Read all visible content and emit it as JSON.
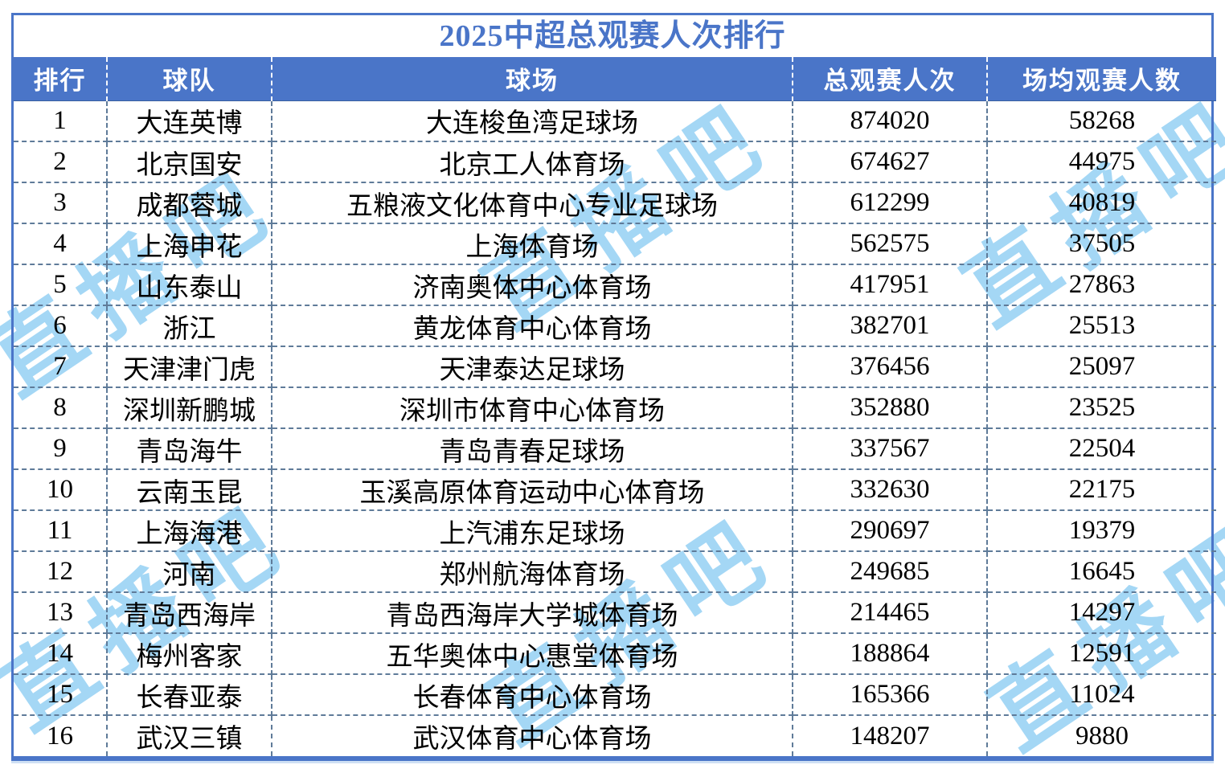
{
  "title": "2025中超总观赛人次排行",
  "watermark": {
    "text": "直播吧",
    "color": "#9bd3f4"
  },
  "colors": {
    "header_bg": "#4a75c8",
    "title_text": "#4a75c8",
    "outer_border": "#4a75c8",
    "divider": "#5f7b99"
  },
  "chart_data": {
    "type": "table",
    "title": "2025中超总观赛人次排行",
    "columns": [
      "排行",
      "球队",
      "球场",
      "总观赛人次",
      "场均观赛人数"
    ],
    "rows": [
      [
        1,
        "大连英博",
        "大连梭鱼湾足球场",
        874020,
        58268
      ],
      [
        2,
        "北京国安",
        "北京工人体育场",
        674627,
        44975
      ],
      [
        3,
        "成都蓉城",
        "五粮液文化体育中心专业足球场",
        612299,
        40819
      ],
      [
        4,
        "上海申花",
        "上海体育场",
        562575,
        37505
      ],
      [
        5,
        "山东泰山",
        "济南奥体中心体育场",
        417951,
        27863
      ],
      [
        6,
        "浙江",
        "黄龙体育中心体育场",
        382701,
        25513
      ],
      [
        7,
        "天津津门虎",
        "天津泰达足球场",
        376456,
        25097
      ],
      [
        8,
        "深圳新鹏城",
        "深圳市体育中心体育场",
        352880,
        23525
      ],
      [
        9,
        "青岛海牛",
        "青岛青春足球场",
        337567,
        22504
      ],
      [
        10,
        "云南玉昆",
        "玉溪高原体育运动中心体育场",
        332630,
        22175
      ],
      [
        11,
        "上海海港",
        "上汽浦东足球场",
        290697,
        19379
      ],
      [
        12,
        "河南",
        "郑州航海体育场",
        249685,
        16645
      ],
      [
        13,
        "青岛西海岸",
        "青岛西海岸大学城体育场",
        214465,
        14297
      ],
      [
        14,
        "梅州客家",
        "五华奥体中心惠堂体育场",
        188864,
        12591
      ],
      [
        15,
        "长春亚泰",
        "长春体育中心体育场",
        165366,
        11024
      ],
      [
        16,
        "武汉三镇",
        "武汉体育中心体育场",
        148207,
        9880
      ]
    ]
  }
}
